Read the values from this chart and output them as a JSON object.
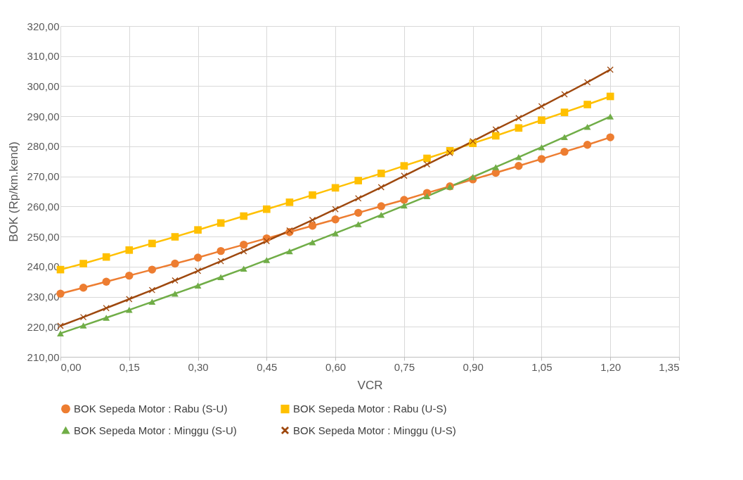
{
  "chart_data": {
    "type": "line",
    "xlabel": "VCR",
    "ylabel": "BOK (Rp/km.kend)",
    "x": [
      0,
      0.05,
      0.1,
      0.15,
      0.2,
      0.25,
      0.3,
      0.35,
      0.4,
      0.45,
      0.5,
      0.55,
      0.6,
      0.65,
      0.7,
      0.75,
      0.8,
      0.85,
      0.9,
      0.95,
      1.0,
      1.05,
      1.1,
      1.15,
      1.2
    ],
    "xlim": [
      0,
      1.35
    ],
    "xticks": [
      {
        "value": 0,
        "label": "0,00"
      },
      {
        "value": 0.15,
        "label": "0,15"
      },
      {
        "value": 0.3,
        "label": "0,30"
      },
      {
        "value": 0.45,
        "label": "0,45"
      },
      {
        "value": 0.6,
        "label": "0,60"
      },
      {
        "value": 0.75,
        "label": "0,75"
      },
      {
        "value": 0.9,
        "label": "0,90"
      },
      {
        "value": 1.05,
        "label": "1,05"
      },
      {
        "value": 1.2,
        "label": "1,20"
      },
      {
        "value": 1.35,
        "label": "1,35"
      }
    ],
    "ylim": [
      210,
      320
    ],
    "yticks": [
      {
        "value": 210,
        "label": "210,00"
      },
      {
        "value": 220,
        "label": "220,00"
      },
      {
        "value": 230,
        "label": "230,00"
      },
      {
        "value": 240,
        "label": "240,00"
      },
      {
        "value": 250,
        "label": "250,00"
      },
      {
        "value": 260,
        "label": "260,00"
      },
      {
        "value": 270,
        "label": "270,00"
      },
      {
        "value": 280,
        "label": "280,00"
      },
      {
        "value": 290,
        "label": "290,00"
      },
      {
        "value": 300,
        "label": "300,00"
      },
      {
        "value": 310,
        "label": "310,00"
      },
      {
        "value": 320,
        "label": "320,00"
      }
    ],
    "grid": true,
    "legend": "bottom",
    "series": [
      {
        "name": "BOK Sepeda Motor : Rabu (S-U)",
        "color": "#ed7d31",
        "marker": "circle",
        "values": [
          231,
          233,
          235,
          237,
          239,
          241,
          243,
          245.2,
          247.3,
          249.4,
          251.5,
          253.6,
          255.7,
          257.9,
          260.1,
          262.2,
          264.5,
          266.7,
          269,
          271.2,
          273.5,
          275.8,
          278.2,
          280.5,
          283
        ]
      },
      {
        "name": "BOK Sepeda Motor : Rabu (U-S)",
        "color": "#ffc000",
        "marker": "square",
        "values": [
          239,
          241,
          243.2,
          245.5,
          247.7,
          249.9,
          252.2,
          254.5,
          256.8,
          259.1,
          261.4,
          263.8,
          266.2,
          268.6,
          271,
          273.5,
          276,
          278.5,
          281,
          283.5,
          286.1,
          288.7,
          291.3,
          293.9,
          296.6
        ]
      },
      {
        "name": "BOK Sepeda Motor : Minggu (S-U)",
        "color": "#70ad47",
        "marker": "triangle",
        "values": [
          217.8,
          220.4,
          223,
          225.6,
          228.3,
          231,
          233.7,
          236.5,
          239.3,
          242.2,
          245.1,
          248.1,
          251.1,
          254.1,
          257.2,
          260.3,
          263.4,
          266.6,
          269.8,
          273.1,
          276.4,
          279.7,
          283.1,
          286.5,
          289.9
        ]
      },
      {
        "name": "BOK Sepeda Motor : Minggu (U-S)",
        "color": "#9e480e",
        "marker": "cross",
        "values": [
          220.3,
          223.2,
          226.2,
          229.2,
          232.2,
          235.4,
          238.6,
          241.8,
          245.1,
          248.5,
          252,
          255.5,
          259.1,
          262.7,
          266.4,
          270.2,
          274,
          277.8,
          281.7,
          285.6,
          289.4,
          293.3,
          297.3,
          301.3,
          305.5
        ]
      }
    ]
  }
}
